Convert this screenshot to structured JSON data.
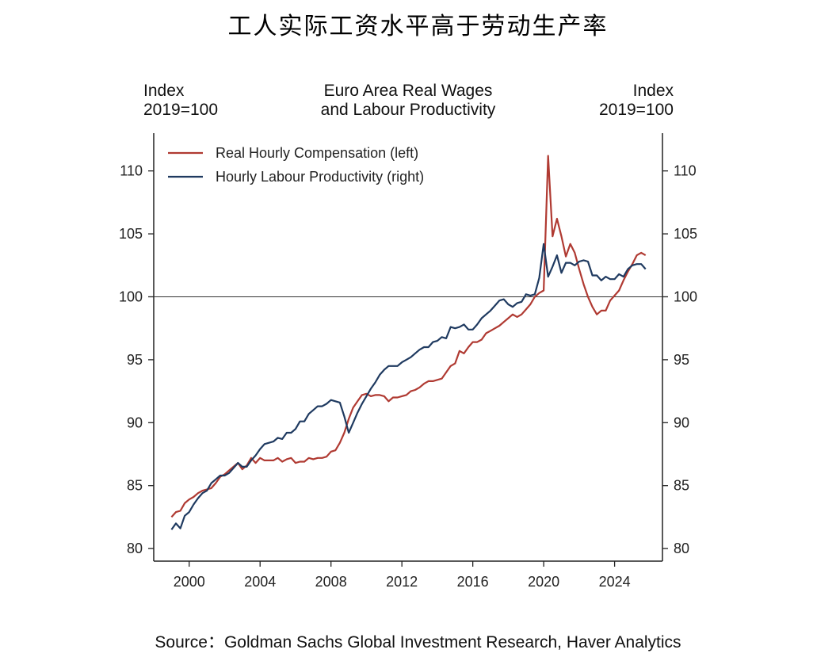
{
  "header": {
    "title": "工人实际工资水平高于劳动生产率"
  },
  "chart_data": {
    "type": "line",
    "title": [
      "Euro Area Real Wages",
      "and Labour Productivity"
    ],
    "ylabel_left": [
      "Index",
      "2019=100"
    ],
    "ylabel_right": [
      "Index",
      "2019=100"
    ],
    "xlim": [
      1998,
      2026.7
    ],
    "ylim": [
      79,
      113
    ],
    "x_ticks": [
      2000,
      2004,
      2008,
      2012,
      2016,
      2020,
      2024
    ],
    "x_tick_labels": [
      "2000",
      "2004",
      "2008",
      "2012",
      "2016",
      "2020",
      "2024"
    ],
    "y_ticks": [
      80,
      85,
      90,
      95,
      100,
      105,
      110
    ],
    "y_tick_labels": [
      "80",
      "85",
      "90",
      "95",
      "100",
      "105",
      "110"
    ],
    "reference_line": 100,
    "legend_position": "top-left",
    "grid": false,
    "series": [
      {
        "name": "Real Hourly Compensation (left)",
        "color": "#b03a32",
        "x": [
          1999.0,
          1999.25,
          1999.5,
          1999.75,
          2000.0,
          2000.25,
          2000.5,
          2000.75,
          2001.0,
          2001.25,
          2001.5,
          2001.75,
          2002.0,
          2002.25,
          2002.5,
          2002.75,
          2003.0,
          2003.25,
          2003.5,
          2003.75,
          2004.0,
          2004.25,
          2004.5,
          2004.75,
          2005.0,
          2005.25,
          2005.5,
          2005.75,
          2006.0,
          2006.25,
          2006.5,
          2006.75,
          2007.0,
          2007.25,
          2007.5,
          2007.75,
          2008.0,
          2008.25,
          2008.5,
          2008.75,
          2009.0,
          2009.25,
          2009.5,
          2009.75,
          2010.0,
          2010.25,
          2010.5,
          2010.75,
          2011.0,
          2011.25,
          2011.5,
          2011.75,
          2012.0,
          2012.25,
          2012.5,
          2012.75,
          2013.0,
          2013.25,
          2013.5,
          2013.75,
          2014.0,
          2014.25,
          2014.5,
          2014.75,
          2015.0,
          2015.25,
          2015.5,
          2015.75,
          2016.0,
          2016.25,
          2016.5,
          2016.75,
          2017.0,
          2017.25,
          2017.5,
          2017.75,
          2018.0,
          2018.25,
          2018.5,
          2018.75,
          2019.0,
          2019.25,
          2019.5,
          2019.75,
          2020.0,
          2020.25,
          2020.5,
          2020.75,
          2021.0,
          2021.25,
          2021.5,
          2021.75,
          2022.0,
          2022.25,
          2022.5,
          2022.75,
          2023.0,
          2023.25,
          2023.5,
          2023.75,
          2024.0,
          2024.25,
          2024.5,
          2024.75,
          2025.0,
          2025.25,
          2025.5,
          2025.75
        ],
        "values": [
          82.5,
          82.9,
          83.0,
          83.6,
          83.9,
          84.1,
          84.4,
          84.6,
          84.7,
          84.8,
          85.2,
          85.7,
          85.9,
          86.2,
          86.5,
          86.8,
          86.3,
          86.6,
          87.2,
          86.8,
          87.2,
          87.0,
          87.0,
          87.0,
          87.2,
          86.9,
          87.1,
          87.2,
          86.8,
          86.9,
          86.9,
          87.2,
          87.1,
          87.2,
          87.2,
          87.3,
          87.7,
          87.8,
          88.4,
          89.2,
          90.3,
          91.2,
          91.7,
          92.2,
          92.3,
          92.1,
          92.2,
          92.2,
          92.1,
          91.7,
          92.0,
          92.0,
          92.1,
          92.2,
          92.5,
          92.6,
          92.8,
          93.1,
          93.3,
          93.3,
          93.4,
          93.5,
          94.0,
          94.5,
          94.7,
          95.7,
          95.5,
          96.0,
          96.4,
          96.4,
          96.6,
          97.1,
          97.3,
          97.5,
          97.7,
          98.0,
          98.3,
          98.6,
          98.4,
          98.6,
          99.0,
          99.4,
          100.0,
          100.3,
          100.5,
          111.2,
          104.8,
          106.2,
          104.8,
          103.2,
          104.2,
          103.5,
          102.2,
          101.0,
          100.0,
          99.2,
          98.6,
          98.9,
          98.9,
          99.7,
          100.1,
          100.5,
          101.3,
          102.0,
          102.6,
          103.3,
          103.5,
          103.3
        ]
      },
      {
        "name": "Hourly Labour Productivity (right)",
        "color": "#1f3a60",
        "x": [
          1999.0,
          1999.25,
          1999.5,
          1999.75,
          2000.0,
          2000.25,
          2000.5,
          2000.75,
          2001.0,
          2001.25,
          2001.5,
          2001.75,
          2002.0,
          2002.25,
          2002.5,
          2002.75,
          2003.0,
          2003.25,
          2003.5,
          2003.75,
          2004.0,
          2004.25,
          2004.5,
          2004.75,
          2005.0,
          2005.25,
          2005.5,
          2005.75,
          2006.0,
          2006.25,
          2006.5,
          2006.75,
          2007.0,
          2007.25,
          2007.5,
          2007.75,
          2008.0,
          2008.25,
          2008.5,
          2008.75,
          2009.0,
          2009.25,
          2009.5,
          2009.75,
          2010.0,
          2010.25,
          2010.5,
          2010.75,
          2011.0,
          2011.25,
          2011.5,
          2011.75,
          2012.0,
          2012.25,
          2012.5,
          2012.75,
          2013.0,
          2013.25,
          2013.5,
          2013.75,
          2014.0,
          2014.25,
          2014.5,
          2014.75,
          2015.0,
          2015.25,
          2015.5,
          2015.75,
          2016.0,
          2016.25,
          2016.5,
          2016.75,
          2017.0,
          2017.25,
          2017.5,
          2017.75,
          2018.0,
          2018.25,
          2018.5,
          2018.75,
          2019.0,
          2019.25,
          2019.5,
          2019.75,
          2020.0,
          2020.25,
          2020.5,
          2020.75,
          2021.0,
          2021.25,
          2021.5,
          2021.75,
          2022.0,
          2022.25,
          2022.5,
          2022.75,
          2023.0,
          2023.25,
          2023.5,
          2023.75,
          2024.0,
          2024.25,
          2024.5,
          2024.75,
          2025.0,
          2025.25,
          2025.5,
          2025.75
        ],
        "values": [
          81.5,
          82.0,
          81.6,
          82.6,
          82.9,
          83.5,
          84.0,
          84.4,
          84.6,
          85.2,
          85.5,
          85.8,
          85.8,
          86.0,
          86.4,
          86.8,
          86.5,
          86.5,
          87.0,
          87.4,
          87.9,
          88.3,
          88.4,
          88.5,
          88.8,
          88.7,
          89.2,
          89.2,
          89.5,
          90.1,
          90.1,
          90.7,
          91.0,
          91.3,
          91.3,
          91.5,
          91.8,
          91.7,
          91.6,
          90.5,
          89.2,
          90.0,
          90.8,
          91.5,
          92.1,
          92.7,
          93.2,
          93.8,
          94.2,
          94.5,
          94.5,
          94.5,
          94.8,
          95.0,
          95.2,
          95.5,
          95.8,
          96.0,
          96.0,
          96.4,
          96.5,
          96.8,
          96.7,
          97.6,
          97.5,
          97.6,
          97.8,
          97.4,
          97.4,
          97.8,
          98.3,
          98.6,
          98.9,
          99.3,
          99.7,
          99.8,
          99.4,
          99.2,
          99.5,
          99.6,
          100.2,
          100.1,
          100.2,
          101.5,
          104.2,
          101.6,
          102.4,
          103.3,
          101.9,
          102.7,
          102.7,
          102.5,
          102.8,
          102.9,
          102.8,
          101.7,
          101.7,
          101.3,
          101.6,
          101.4,
          101.4,
          101.8,
          101.6,
          102.2,
          102.5,
          102.6,
          102.6,
          102.2
        ]
      }
    ]
  },
  "footer": {
    "source": "Source：Goldman Sachs Global Investment Research, Haver Analytics"
  }
}
